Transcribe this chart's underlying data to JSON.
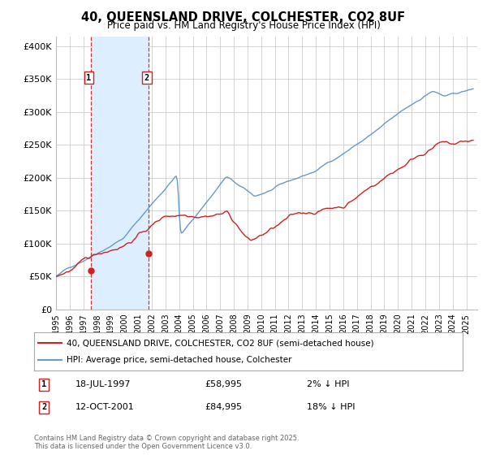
{
  "title": "40, QUEENSLAND DRIVE, COLCHESTER, CO2 8UF",
  "subtitle": "Price paid vs. HM Land Registry's House Price Index (HPI)",
  "ylabel_ticks": [
    "£0",
    "£50K",
    "£100K",
    "£150K",
    "£200K",
    "£250K",
    "£300K",
    "£350K",
    "£400K"
  ],
  "ytick_values": [
    0,
    50000,
    100000,
    150000,
    200000,
    250000,
    300000,
    350000,
    400000
  ],
  "ylim": [
    0,
    415000
  ],
  "xlim_start": 1995.0,
  "xlim_end": 2025.8,
  "legend1_label": "40, QUEENSLAND DRIVE, COLCHESTER, CO2 8UF (semi-detached house)",
  "legend2_label": "HPI: Average price, semi-detached house, Colchester",
  "transaction1_date": "18-JUL-1997",
  "transaction1_price": "£58,995",
  "transaction1_note": "2% ↓ HPI",
  "transaction2_date": "12-OCT-2001",
  "transaction2_price": "£84,995",
  "transaction2_note": "18% ↓ HPI",
  "footnote": "Contains HM Land Registry data © Crown copyright and database right 2025.\nThis data is licensed under the Open Government Licence v3.0.",
  "hpi_color": "#6699cc",
  "price_color": "#cc2222",
  "marker1_x": 1997.54,
  "marker1_y": 58995,
  "marker2_x": 2001.79,
  "marker2_y": 84995,
  "vline1_x": 1997.54,
  "vline2_x": 2001.79,
  "shade_color": "#ddeeff",
  "grid_color": "#cccccc",
  "bg_color": "#ffffff"
}
